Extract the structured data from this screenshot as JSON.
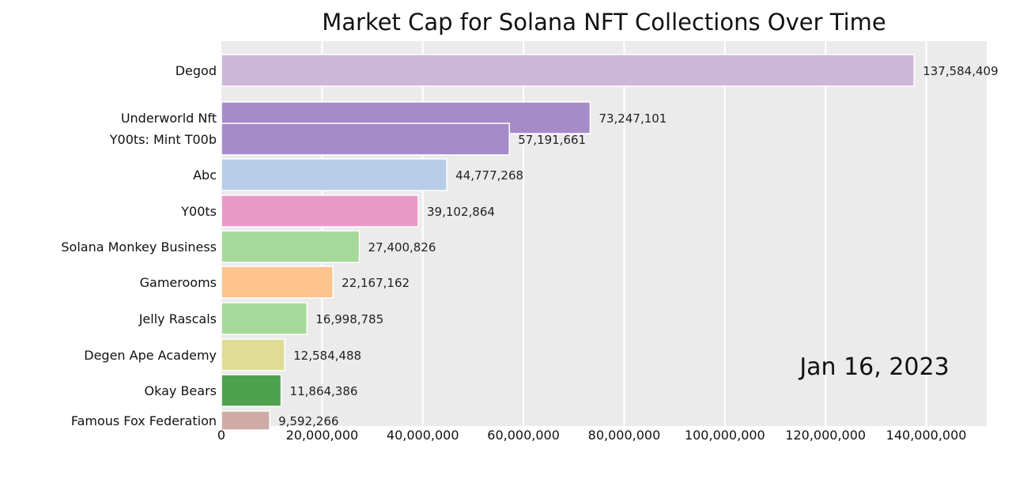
{
  "chart_data": {
    "type": "bar",
    "orientation": "horizontal",
    "title": "Market Cap for Solana NFT Collections Over Time",
    "date": "Jan 16, 2023",
    "xlim": [
      0,
      152000000
    ],
    "xticks": [
      0,
      20000000,
      40000000,
      60000000,
      80000000,
      100000000,
      120000000,
      140000000
    ],
    "xtick_labels": [
      "0",
      "20,000,000",
      "40,000,000",
      "60,000,000",
      "80,000,000",
      "100,000,000",
      "120,000,000",
      "140,000,000"
    ],
    "grid": true,
    "bars": [
      {
        "name": "Degod",
        "value": 137584409,
        "label": "137,584,409",
        "color": "#cbb8d9"
      },
      {
        "name": "Underworld Nft",
        "value": 73247101,
        "label": "73,247,101",
        "color": "#a68bc9"
      },
      {
        "name": "Y00ts: Mint T00b",
        "value": 57191661,
        "label": "57,191,661",
        "color": "#a68bc9"
      },
      {
        "name": "Abc",
        "value": 44777268,
        "label": "44,777,268",
        "color": "#b8cde8"
      },
      {
        "name": "Y00ts",
        "value": 39102864,
        "label": "39,102,864",
        "color": "#e99ac8"
      },
      {
        "name": "Solana Monkey Business",
        "value": 27400826,
        "label": "27,400,826",
        "color": "#a5d99a"
      },
      {
        "name": "Gamerooms",
        "value": 22167162,
        "label": "22,167,162",
        "color": "#fcc48c"
      },
      {
        "name": "Jelly Rascals",
        "value": 16998785,
        "label": "16,998,785",
        "color": "#a5d99a"
      },
      {
        "name": "Degen Ape Academy",
        "value": 12584488,
        "label": "12,584,488",
        "color": "#e0dc98"
      },
      {
        "name": "Okay Bears",
        "value": 11864386,
        "label": "11,864,386",
        "color": "#4ea24e"
      },
      {
        "name": "Famous Fox Federation",
        "value": 9592266,
        "label": "9,592,266",
        "color": "#cfaba5"
      }
    ]
  }
}
